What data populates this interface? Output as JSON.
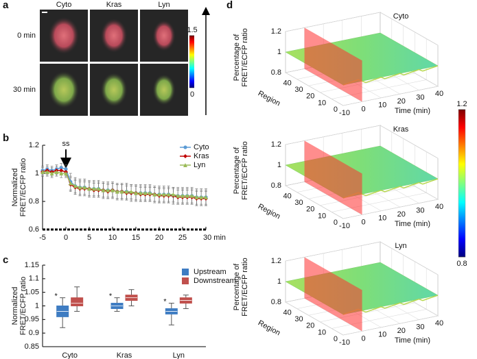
{
  "chart_data": [
    {
      "type": "image-grid",
      "panel": "a",
      "columns": [
        "Cyto",
        "Kras",
        "Lyn"
      ],
      "rows": [
        "0 min",
        "30 min"
      ],
      "clim": [
        0,
        1.5
      ],
      "cticks": [
        0,
        1.5
      ]
    },
    {
      "type": "line",
      "panel": "b",
      "ylabel": [
        "Normalized",
        "FRET/ECFP ratio"
      ],
      "x": [
        -5,
        -4,
        -3,
        -2,
        -1,
        0,
        1,
        2,
        3,
        4,
        5,
        6,
        7,
        8,
        9,
        10,
        11,
        12,
        13,
        14,
        15,
        16,
        17,
        18,
        19,
        20,
        21,
        22,
        23,
        24,
        25,
        26,
        27,
        28,
        29,
        30
      ],
      "xlim": [
        -5,
        30
      ],
      "xticks": [
        -5,
        0,
        5,
        10,
        15,
        20,
        25,
        {
          "value": 30,
          "label": "30 min"
        }
      ],
      "ylim": [
        0.6,
        1.2
      ],
      "yticks": [
        0.6,
        0.8,
        1,
        1.2
      ],
      "annotation": {
        "text": "ss",
        "x": 0
      },
      "legend": "upper right",
      "series": [
        {
          "name": "Cyto",
          "color": "#5b9bd5",
          "marker": "circle",
          "values": [
            1.02,
            1.03,
            1.02,
            1.03,
            1.04,
            1.03,
            0.94,
            0.91,
            0.9,
            0.9,
            0.89,
            0.89,
            0.89,
            0.88,
            0.88,
            0.88,
            0.87,
            0.87,
            0.87,
            0.86,
            0.86,
            0.86,
            0.86,
            0.86,
            0.85,
            0.85,
            0.85,
            0.85,
            0.84,
            0.84,
            0.84,
            0.84,
            0.84,
            0.83,
            0.83,
            0.83
          ],
          "errors": [
            0.03,
            0.03,
            0.03,
            0.03,
            0.03,
            0.03,
            0.06,
            0.06,
            0.06,
            0.06,
            0.06,
            0.06,
            0.06,
            0.06,
            0.06,
            0.06,
            0.06,
            0.06,
            0.06,
            0.06,
            0.06,
            0.06,
            0.06,
            0.06,
            0.06,
            0.06,
            0.06,
            0.06,
            0.06,
            0.06,
            0.06,
            0.06,
            0.06,
            0.06,
            0.06,
            0.06
          ]
        },
        {
          "name": "Kras",
          "color": "#c00000",
          "marker": "diamond",
          "values": [
            1.01,
            1.02,
            1.01,
            1.02,
            1.02,
            1.01,
            0.92,
            0.9,
            0.89,
            0.89,
            0.89,
            0.88,
            0.88,
            0.88,
            0.87,
            0.88,
            0.87,
            0.87,
            0.86,
            0.86,
            0.86,
            0.85,
            0.85,
            0.85,
            0.85,
            0.84,
            0.84,
            0.84,
            0.84,
            0.83,
            0.83,
            0.83,
            0.83,
            0.82,
            0.82,
            0.82
          ],
          "errors": [
            0.03,
            0.03,
            0.03,
            0.03,
            0.03,
            0.03,
            0.05,
            0.05,
            0.05,
            0.05,
            0.05,
            0.05,
            0.05,
            0.05,
            0.05,
            0.05,
            0.05,
            0.05,
            0.05,
            0.05,
            0.05,
            0.05,
            0.05,
            0.05,
            0.05,
            0.05,
            0.05,
            0.05,
            0.05,
            0.05,
            0.05,
            0.05,
            0.05,
            0.05,
            0.05,
            0.05
          ]
        },
        {
          "name": "Lyn",
          "color": "#9bbb59",
          "marker": "triangle",
          "values": [
            1.01,
            1.01,
            1.0,
            1.01,
            1.0,
            1.0,
            0.93,
            0.91,
            0.9,
            0.9,
            0.89,
            0.89,
            0.89,
            0.88,
            0.88,
            0.88,
            0.87,
            0.87,
            0.87,
            0.87,
            0.86,
            0.86,
            0.86,
            0.86,
            0.85,
            0.85,
            0.85,
            0.85,
            0.85,
            0.84,
            0.84,
            0.84,
            0.84,
            0.83,
            0.83,
            0.83
          ],
          "errors": [
            0.03,
            0.03,
            0.03,
            0.03,
            0.03,
            0.03,
            0.05,
            0.05,
            0.05,
            0.05,
            0.05,
            0.05,
            0.05,
            0.05,
            0.05,
            0.05,
            0.05,
            0.05,
            0.05,
            0.05,
            0.05,
            0.05,
            0.05,
            0.05,
            0.05,
            0.05,
            0.05,
            0.05,
            0.05,
            0.05,
            0.05,
            0.05,
            0.05,
            0.05,
            0.05,
            0.05
          ]
        }
      ]
    },
    {
      "type": "box",
      "panel": "c",
      "ylabel": [
        "Normalized",
        "FRET/ECFP ratio"
      ],
      "categories": [
        "Cyto",
        "Kras",
        "Lyn"
      ],
      "ylim": [
        0.85,
        1.15
      ],
      "yticks": [
        0.85,
        0.9,
        0.95,
        1,
        1.05,
        1.1,
        1.15
      ],
      "legend": "upper right",
      "series": [
        {
          "name": "Upstream",
          "color": "#3e7cc2",
          "min": [
            0.92,
            0.98,
            0.93
          ],
          "q1": [
            0.96,
            0.99,
            0.97
          ],
          "median": [
            0.98,
            1.0,
            0.98
          ],
          "q3": [
            1.0,
            1.01,
            0.99
          ],
          "max": [
            1.03,
            1.03,
            1.01
          ],
          "markers": [
            "*",
            "*",
            "*"
          ]
        },
        {
          "name": "Downstream",
          "color": "#c0504d",
          "min": [
            0.98,
            1.0,
            0.99
          ],
          "q1": [
            1.0,
            1.02,
            1.01
          ],
          "median": [
            1.01,
            1.03,
            1.02
          ],
          "q3": [
            1.03,
            1.04,
            1.03
          ],
          "max": [
            1.07,
            1.06,
            1.04
          ]
        }
      ]
    },
    {
      "type": "surface3d",
      "panel": "d",
      "title": "Cyto",
      "zlabel": [
        "Percentage of",
        "FRET/ECFP ratio"
      ],
      "ylabel": "Region",
      "xlabel": "Time (min)",
      "xlim": [
        -10,
        40
      ],
      "xticks": [
        -10,
        0,
        10,
        20,
        30,
        40
      ],
      "ylim": [
        0,
        50
      ],
      "yticks": [
        0,
        10,
        20,
        30,
        40
      ],
      "zlim": [
        0.8,
        1.2
      ],
      "zticks": [
        0.8,
        1,
        1.2
      ],
      "stimulus_time": 0,
      "surface_z": 1
    },
    {
      "type": "surface3d",
      "title": "Kras",
      "zlabel": [
        "Percentage of",
        "FRET/ECFP ratio"
      ],
      "ylabel": "Region",
      "xlabel": "Time (min)",
      "xlim": [
        -10,
        40
      ],
      "xticks": [
        -10,
        0,
        10,
        20,
        30,
        40
      ],
      "ylim": [
        0,
        50
      ],
      "yticks": [
        0,
        10,
        20,
        30,
        40
      ],
      "zlim": [
        0.8,
        1.2
      ],
      "zticks": [
        0.8,
        1,
        1.2
      ],
      "stimulus_time": 0,
      "surface_z": 1
    },
    {
      "type": "surface3d",
      "title": "Lyn",
      "zlabel": [
        "Percentage of",
        "FRET/ECFP ratio"
      ],
      "ylabel": "Region",
      "xlabel": "Time (min)",
      "xlim": [
        -10,
        40
      ],
      "xticks": [
        -10,
        0,
        10,
        20,
        30,
        40
      ],
      "ylim": [
        0,
        50
      ],
      "yticks": [
        0,
        10,
        20,
        30,
        40
      ],
      "zlim": [
        0.8,
        1.2
      ],
      "zticks": [
        0.8,
        1,
        1.2
      ],
      "stimulus_time": 0,
      "surface_z": 1
    },
    {
      "type": "colorbar",
      "clim": [
        0.8,
        1.2
      ],
      "cticks": [
        0.8,
        1.2
      ]
    }
  ]
}
